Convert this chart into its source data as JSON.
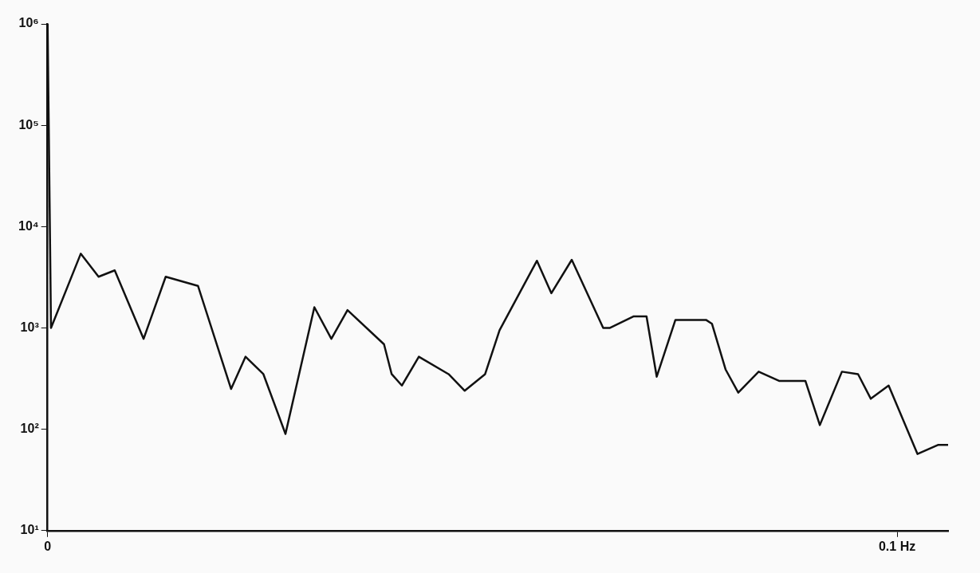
{
  "chart_data": {
    "type": "line",
    "log": "y",
    "grid": false,
    "legend": false,
    "marker": "none",
    "line_style": "solid",
    "x": [
      0,
      0.0004,
      0.0039,
      0.006,
      0.0079,
      0.0113,
      0.0139,
      0.0177,
      0.0216,
      0.0233,
      0.0254,
      0.028,
      0.0314,
      0.0334,
      0.0353,
      0.0396,
      0.0405,
      0.0417,
      0.0437,
      0.0472,
      0.0491,
      0.0515,
      0.0532,
      0.0576,
      0.0593,
      0.0617,
      0.0654,
      0.0662,
      0.069,
      0.0705,
      0.0717,
      0.0739,
      0.0775,
      0.0782,
      0.0798,
      0.0813,
      0.0837,
      0.0861,
      0.0892,
      0.0909,
      0.0935,
      0.0954,
      0.0969,
      0.099,
      0.1024,
      0.1048,
      0.106
    ],
    "series": [
      {
        "color": "#111111",
        "values": [
          1000000,
          1000,
          5400,
          3200,
          3700,
          780,
          3200,
          2600,
          250,
          520,
          350,
          90,
          1600,
          780,
          1500,
          690,
          350,
          270,
          520,
          350,
          240,
          350,
          950,
          4600,
          2200,
          4700,
          1000,
          1000,
          1300,
          1300,
          330,
          1200,
          1200,
          1100,
          390,
          230,
          370,
          300,
          300,
          110,
          370,
          350,
          200,
          270,
          57,
          70,
          70
        ]
      }
    ],
    "xlim": [
      0,
      0.106
    ],
    "xticks": [
      0,
      {
        "value": 0.1,
        "label": "0.1 Hz"
      }
    ],
    "ylim": [
      10,
      1000000
    ],
    "yticks": [
      {
        "value": 10,
        "label": "10¹"
      },
      {
        "value": 100,
        "label": "10²"
      },
      {
        "value": 1000,
        "label": "10³"
      },
      {
        "value": 10000,
        "label": "10⁴"
      },
      {
        "value": 100000,
        "label": "10⁵"
      },
      {
        "value": 1000000,
        "label": "10⁶"
      }
    ]
  }
}
